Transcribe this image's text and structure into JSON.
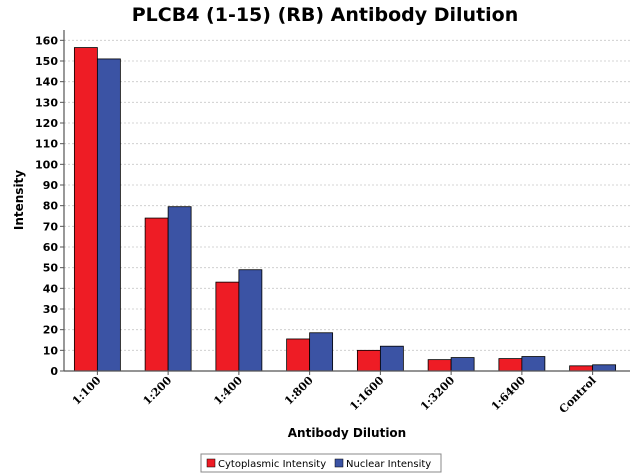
{
  "chart_data": {
    "type": "bar",
    "title": "PLCB4 (1-15) (RB) Antibody Dilution",
    "xlabel": "Antibody Dilution",
    "ylabel": "Intensity",
    "ylim": [
      0,
      165
    ],
    "yticks": [
      0,
      10,
      20,
      30,
      40,
      50,
      60,
      70,
      80,
      90,
      100,
      110,
      120,
      130,
      140,
      150,
      160
    ],
    "grid": true,
    "legend_position": "bottom-center",
    "categories": [
      "1:100",
      "1:200",
      "1:400",
      "1:800",
      "1:1600",
      "1:3200",
      "1:6400",
      "Control"
    ],
    "series": [
      {
        "name": "Cytoplasmic Intensity",
        "color": "#ee1c25",
        "values": [
          156.5,
          74,
          43,
          15.5,
          10,
          5.5,
          6,
          2.5
        ]
      },
      {
        "name": "Nuclear Intensity",
        "color": "#3b53a4",
        "values": [
          151,
          79.5,
          49,
          18.5,
          12,
          6.5,
          7,
          3
        ]
      }
    ]
  }
}
